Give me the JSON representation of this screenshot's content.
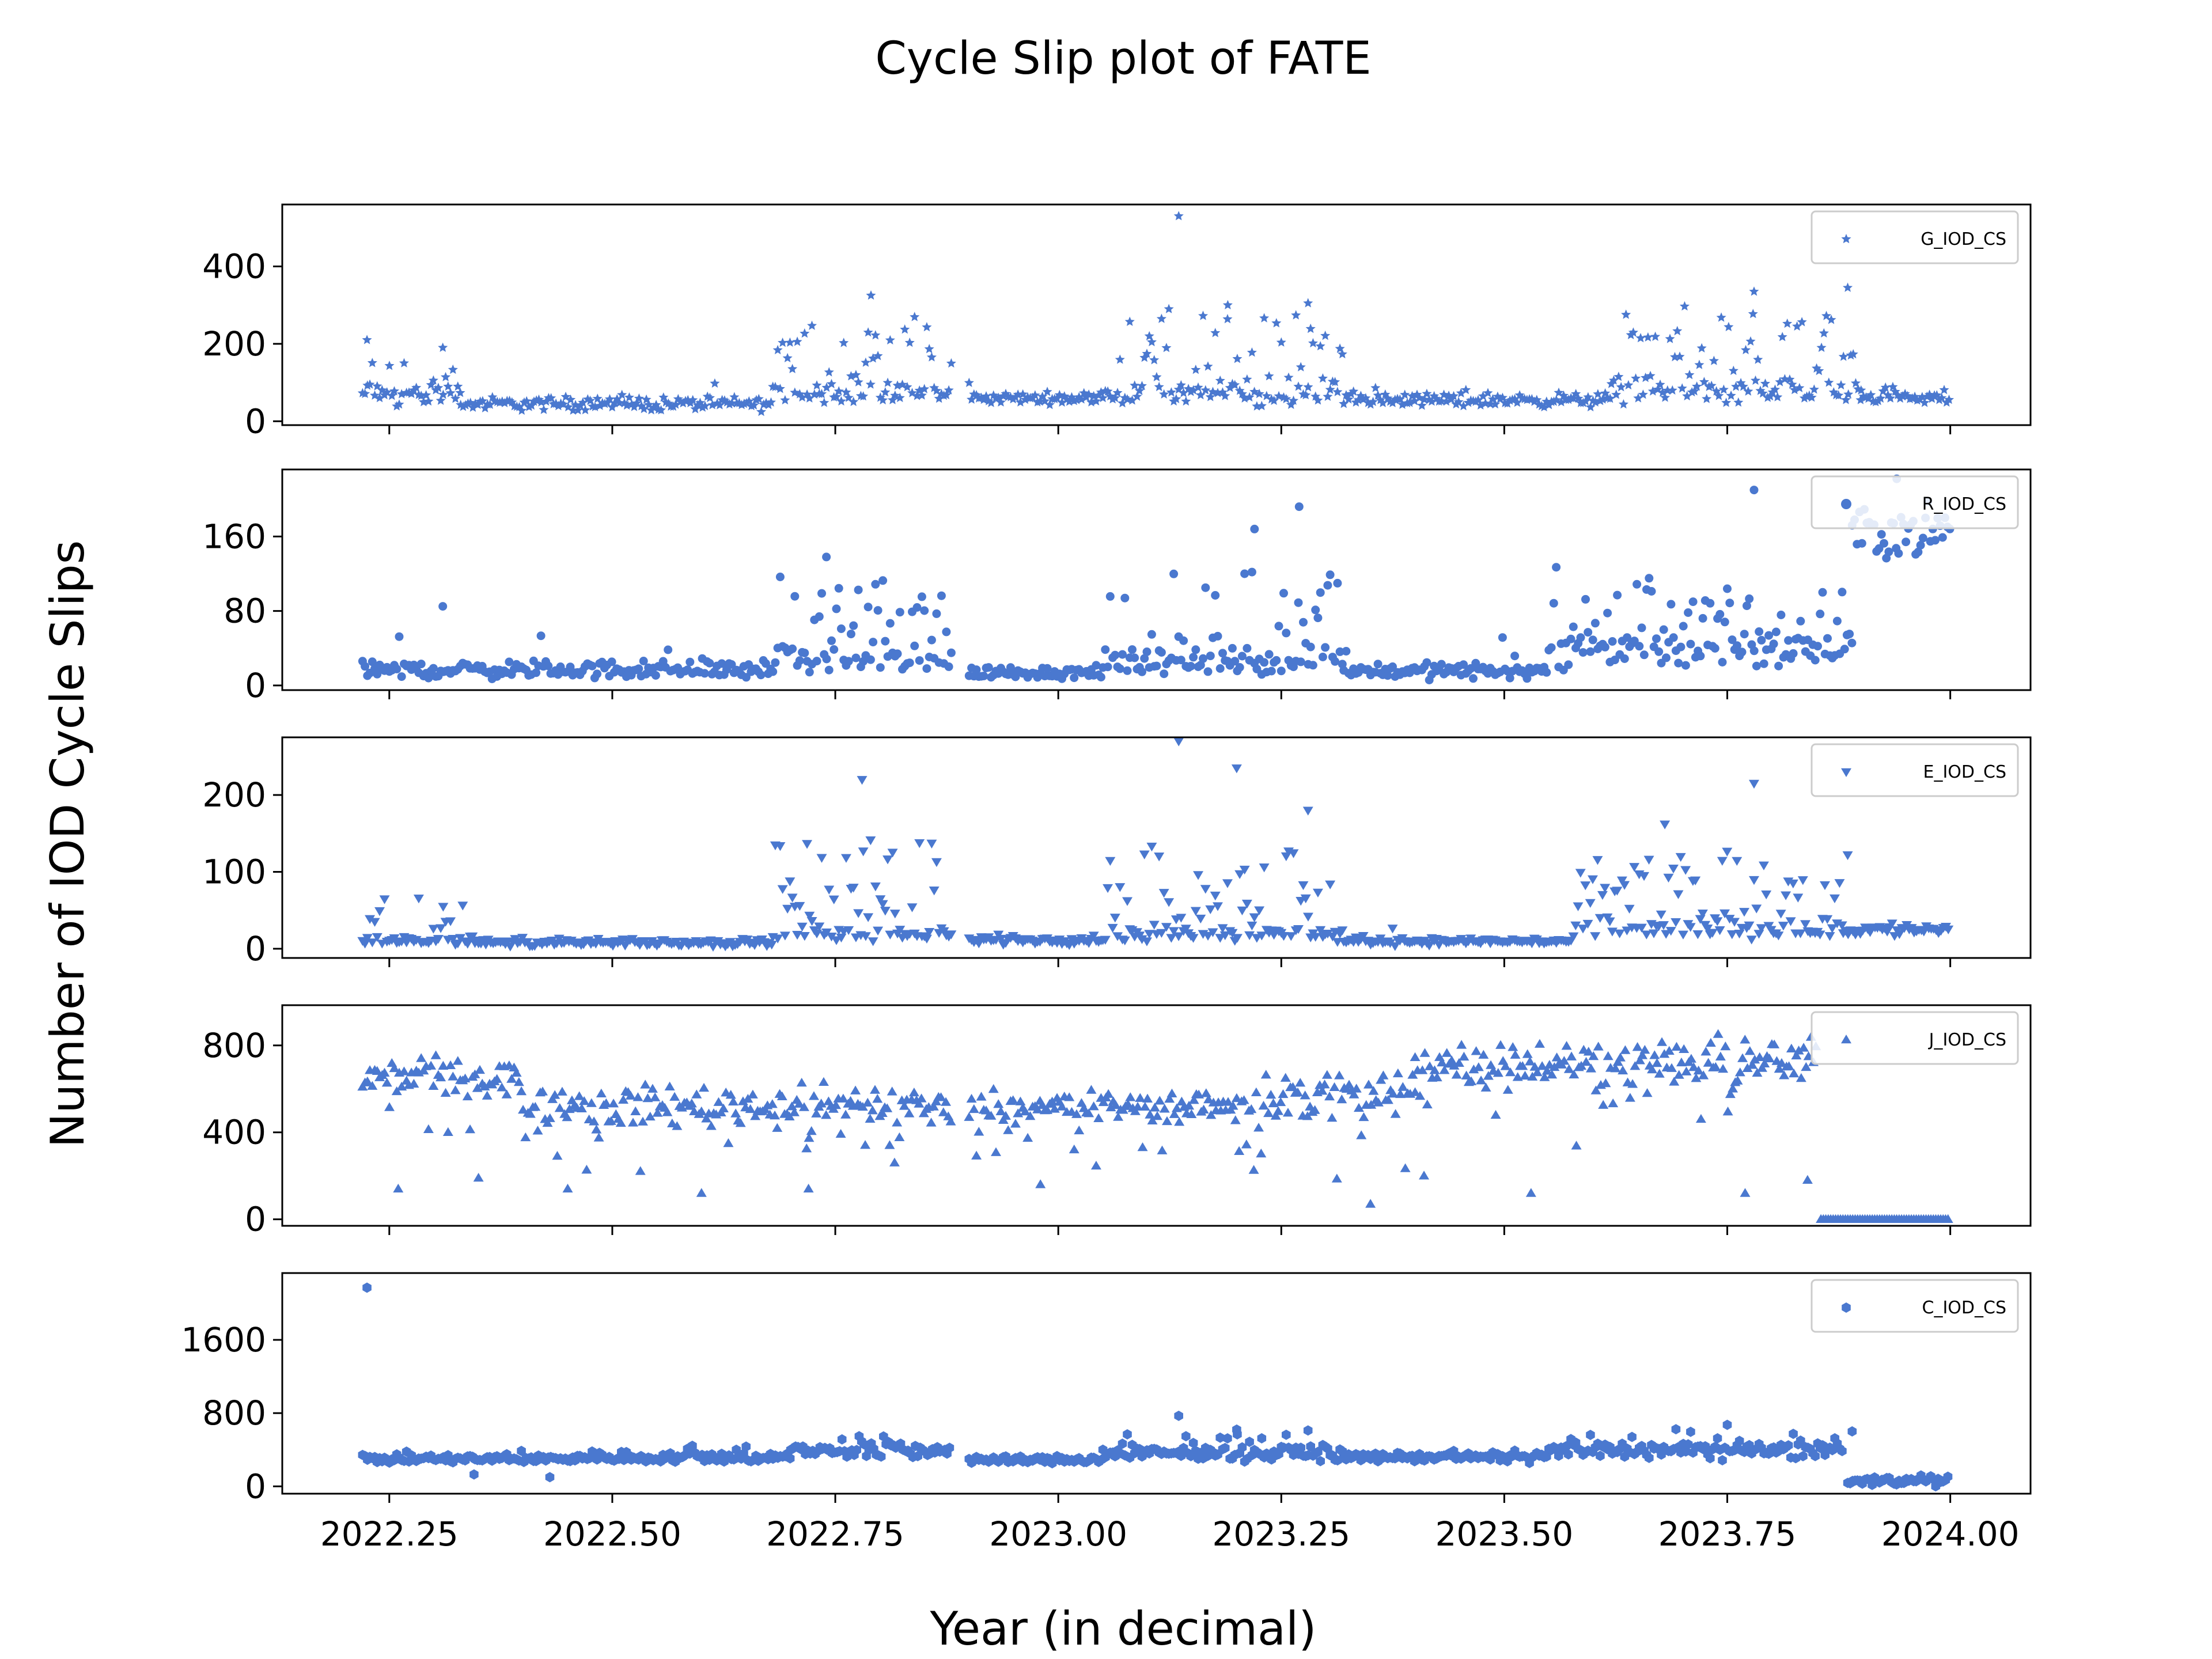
{
  "figure": {
    "title": "Cycle Slip plot of FATE",
    "xlabel": "Year (in decimal)",
    "ylabel": "Number of IOD Cycle Slips",
    "marker_color": "#4a78cf"
  },
  "chart_data": {
    "type": "scatter",
    "title": "Cycle Slip plot of FATE",
    "xlabel": "Year (in decimal)",
    "ylabel": "Number of IOD Cycle Slips",
    "x_ticks": [
      "2022.25",
      "2022.50",
      "2022.75",
      "2023.00",
      "2023.25",
      "2023.50",
      "2023.75",
      "2024.00"
    ],
    "x_tick_values": [
      2022.25,
      2022.5,
      2022.75,
      2023.0,
      2023.25,
      2023.5,
      2023.75,
      2024.0
    ],
    "xlim": [
      2022.13,
      2024.09
    ],
    "x_start": 2022.22,
    "x_end": 2024.0,
    "data_gap": [
      2022.88,
      2022.9
    ],
    "grid": false,
    "legend_position": "top-right",
    "panels": [
      {
        "series_name": "G_IOD_CS",
        "marker": "star",
        "ylim": [
          -10,
          560
        ],
        "y_ticks": [
          0,
          200,
          400
        ],
        "y_tick_labels": [
          "0",
          "200",
          "400"
        ],
        "outliers": [
          [
            2023.135,
            530
          ],
          [
            2023.885,
            345
          ],
          [
            2022.225,
            210
          ],
          [
            2022.31,
            190
          ],
          [
            2023.19,
            300
          ],
          [
            2023.28,
            305
          ],
          [
            2022.79,
            325
          ],
          [
            2023.78,
            335
          ]
        ],
        "segments": [
          {
            "x0": 2022.22,
            "x1": 2022.33,
            "base": 70,
            "spread": 25,
            "spikes": 0.25,
            "spike_max": 110
          },
          {
            "x0": 2022.33,
            "x1": 2022.68,
            "base": 45,
            "spread": 15,
            "spikes": 0.02,
            "spike_max": 30
          },
          {
            "x0": 2022.68,
            "x1": 2022.88,
            "base": 70,
            "spread": 25,
            "spikes": 0.4,
            "spike_max": 230
          },
          {
            "x0": 2022.9,
            "x1": 2023.05,
            "base": 60,
            "spread": 12,
            "spikes": 0.05,
            "spike_max": 40
          },
          {
            "x0": 2023.05,
            "x1": 2023.32,
            "base": 70,
            "spread": 25,
            "spikes": 0.35,
            "spike_max": 220
          },
          {
            "x0": 2023.32,
            "x1": 2023.62,
            "base": 55,
            "spread": 15,
            "spikes": 0.03,
            "spike_max": 40
          },
          {
            "x0": 2023.62,
            "x1": 2023.9,
            "base": 75,
            "spread": 25,
            "spikes": 0.4,
            "spike_max": 200
          },
          {
            "x0": 2023.9,
            "x1": 2024.0,
            "base": 60,
            "spread": 15,
            "spikes": 0.05,
            "spike_max": 30
          }
        ]
      },
      {
        "series_name": "R_IOD_CS",
        "marker": "circle",
        "ylim": [
          -5,
          232
        ],
        "y_ticks": [
          0,
          80,
          160
        ],
        "y_tick_labels": [
          "0",
          "80",
          "160"
        ],
        "outliers": [
          [
            2023.78,
            210
          ],
          [
            2023.27,
            192
          ],
          [
            2023.94,
            222
          ],
          [
            2023.22,
            168
          ],
          [
            2022.74,
            138
          ],
          [
            2022.31,
            85
          ]
        ],
        "segments": [
          {
            "x0": 2022.22,
            "x1": 2022.68,
            "base": 17,
            "spread": 8,
            "spikes": 0.05,
            "spike_max": 40
          },
          {
            "x0": 2022.68,
            "x1": 2022.88,
            "base": 25,
            "spread": 12,
            "spikes": 0.35,
            "spike_max": 90
          },
          {
            "x0": 2022.9,
            "x1": 2023.05,
            "base": 14,
            "spread": 6,
            "spikes": 0.03,
            "spike_max": 20
          },
          {
            "x0": 2023.05,
            "x1": 2023.32,
            "base": 25,
            "spread": 12,
            "spikes": 0.3,
            "spike_max": 100
          },
          {
            "x0": 2023.32,
            "x1": 2023.55,
            "base": 16,
            "spread": 7,
            "spikes": 0.04,
            "spike_max": 40
          },
          {
            "x0": 2023.55,
            "x1": 2023.89,
            "base": 40,
            "spread": 18,
            "spikes": 0.35,
            "spike_max": 70
          },
          {
            "x0": 2023.89,
            "x1": 2024.0,
            "base": 165,
            "spread": 25,
            "spikes": 0.0,
            "spike_max": 0
          }
        ]
      },
      {
        "series_name": "E_IOD_CS",
        "marker": "triangle-down",
        "ylim": [
          -12,
          275
        ],
        "y_ticks": [
          0,
          100,
          200
        ],
        "y_tick_labels": [
          "0",
          "100",
          "200"
        ],
        "outliers": [
          [
            2023.135,
            270
          ],
          [
            2023.2,
            235
          ],
          [
            2022.78,
            220
          ],
          [
            2023.78,
            215
          ],
          [
            2023.28,
            180
          ],
          [
            2023.68,
            162
          ],
          [
            2023.885,
            122
          ]
        ],
        "segments": [
          {
            "x0": 2022.22,
            "x1": 2022.35,
            "base": 12,
            "spread": 6,
            "spikes": 0.25,
            "spike_max": 60
          },
          {
            "x0": 2022.35,
            "x1": 2022.68,
            "base": 8,
            "spread": 4,
            "spikes": 0.02,
            "spike_max": 10
          },
          {
            "x0": 2022.68,
            "x1": 2022.88,
            "base": 20,
            "spread": 8,
            "spikes": 0.45,
            "spike_max": 120
          },
          {
            "x0": 2022.9,
            "x1": 2023.05,
            "base": 12,
            "spread": 5,
            "spikes": 0.03,
            "spike_max": 20
          },
          {
            "x0": 2023.05,
            "x1": 2023.32,
            "base": 20,
            "spread": 8,
            "spikes": 0.4,
            "spike_max": 110
          },
          {
            "x0": 2023.32,
            "x1": 2023.58,
            "base": 10,
            "spread": 4,
            "spikes": 0.03,
            "spike_max": 30
          },
          {
            "x0": 2023.58,
            "x1": 2023.88,
            "base": 25,
            "spread": 10,
            "spikes": 0.45,
            "spike_max": 90
          },
          {
            "x0": 2023.88,
            "x1": 2024.0,
            "base": 25,
            "spread": 8,
            "spikes": 0.05,
            "spike_max": 15
          }
        ]
      },
      {
        "series_name": "J_IOD_CS",
        "marker": "triangle-up",
        "ylim": [
          -30,
          985
        ],
        "y_ticks": [
          0,
          400,
          800
        ],
        "y_tick_labels": [
          "0",
          "400",
          "800"
        ],
        "outliers": [
          [
            2022.26,
            140
          ],
          [
            2022.6,
            120
          ],
          [
            2022.35,
            190
          ],
          [
            2022.45,
            140
          ],
          [
            2023.35,
            70
          ],
          [
            2023.53,
            120
          ],
          [
            2023.77,
            120
          ],
          [
            2023.84,
            180
          ],
          [
            2022.72,
            140
          ],
          [
            2022.98,
            160
          ],
          [
            2023.41,
            200
          ]
        ],
        "segments": [
          {
            "x0": 2022.22,
            "x1": 2022.4,
            "base": 660,
            "spread": 70,
            "spikes": 0.0,
            "spike_max": 0,
            "dips": 0.08,
            "dip_max": 300
          },
          {
            "x0": 2022.4,
            "x1": 2022.88,
            "base": 520,
            "spread": 80,
            "spikes": 0.0,
            "spike_max": 0,
            "dips": 0.1,
            "dip_max": 250
          },
          {
            "x0": 2022.9,
            "x1": 2023.2,
            "base": 520,
            "spread": 60,
            "spikes": 0.0,
            "spike_max": 0,
            "dips": 0.12,
            "dip_max": 250
          },
          {
            "x0": 2023.2,
            "x1": 2023.4,
            "base": 560,
            "spread": 120,
            "spikes": 0.0,
            "spike_max": 0,
            "dips": 0.15,
            "dip_max": 300
          },
          {
            "x0": 2023.4,
            "x1": 2023.85,
            "base": 720,
            "spread": 90,
            "spikes": 0.0,
            "spike_max": 0,
            "dips": 0.1,
            "dip_max": 300
          },
          {
            "x0": 2023.855,
            "x1": 2024.0,
            "base": 0,
            "spread": 0,
            "spikes": 0.0,
            "spike_max": 0
          }
        ]
      },
      {
        "series_name": "C_IOD_CS",
        "marker": "hexagon",
        "ylim": [
          -80,
          2330
        ],
        "y_ticks": [
          0,
          800,
          1600
        ],
        "y_tick_labels": [
          "0",
          "800",
          "1600"
        ],
        "outliers": [
          [
            2022.225,
            2170
          ],
          [
            2023.135,
            770
          ],
          [
            2022.43,
            100
          ],
          [
            2022.345,
            130
          ],
          [
            2023.2,
            620
          ],
          [
            2023.28,
            610
          ],
          [
            2023.89,
            600
          ]
        ],
        "segments": [
          {
            "x0": 2022.22,
            "x1": 2022.45,
            "base": 300,
            "spread": 40,
            "spikes": 0.02,
            "spike_max": 60
          },
          {
            "x0": 2022.45,
            "x1": 2022.7,
            "base": 320,
            "spread": 50,
            "spikes": 0.05,
            "spike_max": 100
          },
          {
            "x0": 2022.7,
            "x1": 2022.88,
            "base": 390,
            "spread": 70,
            "spikes": 0.15,
            "spike_max": 150
          },
          {
            "x0": 2022.9,
            "x1": 2023.05,
            "base": 290,
            "spread": 35,
            "spikes": 0.02,
            "spike_max": 40
          },
          {
            "x0": 2023.05,
            "x1": 2023.32,
            "base": 360,
            "spread": 60,
            "spikes": 0.15,
            "spike_max": 200
          },
          {
            "x0": 2023.32,
            "x1": 2023.55,
            "base": 320,
            "spread": 40,
            "spikes": 0.03,
            "spike_max": 60
          },
          {
            "x0": 2023.55,
            "x1": 2023.88,
            "base": 400,
            "spread": 70,
            "spikes": 0.15,
            "spike_max": 200
          },
          {
            "x0": 2023.885,
            "x1": 2024.0,
            "base": 60,
            "spread": 40,
            "spikes": 0.05,
            "spike_max": 80
          }
        ]
      }
    ]
  }
}
